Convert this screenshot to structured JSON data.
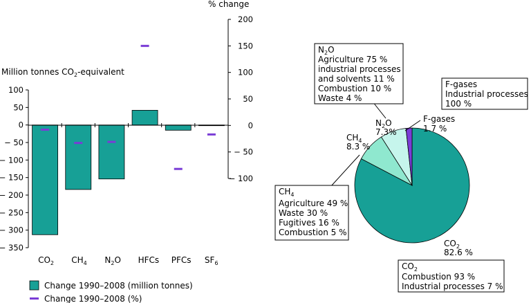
{
  "colors": {
    "tonnes": "#17a096",
    "percent": "#7a3cd6",
    "co2": "#17a096",
    "ch4": "#8fe8cf",
    "n2o": "#c6f5ec",
    "fgases": "#7a3cd6"
  },
  "chart_data": [
    {
      "type": "bar",
      "categories": [
        "CO2",
        "CH4",
        "N2O",
        "HFCs",
        "PFCs",
        "SF6"
      ],
      "category_labels": [
        {
          "main": "CO",
          "sub": "2"
        },
        {
          "main": "CH",
          "sub": "4"
        },
        {
          "main": "N",
          "sub": "2",
          "tail": "O"
        },
        {
          "main": "HFCs",
          "sub": ""
        },
        {
          "main": "PFCs",
          "sub": ""
        },
        {
          "main": "SF",
          "sub": "6"
        }
      ],
      "ylabel_left": {
        "pre": "Million tonnes CO",
        "sub": "2",
        "post": "-equivalent"
      },
      "ylabel_right": "% change",
      "ylim_left": [
        -350,
        100
      ],
      "yticks_left": [
        100,
        50,
        0,
        -50,
        -100,
        -150,
        -200,
        -250,
        -300,
        -350
      ],
      "ylim_right": [
        -100,
        200
      ],
      "yticks_right": [
        200,
        150,
        100,
        50,
        0,
        -50,
        -100
      ],
      "grid": false,
      "legend_position": "bottom-left",
      "series": [
        {
          "name": "Change 1990–2008 (million tonnes)",
          "kind": "bar",
          "axis": "left",
          "values": [
            -313,
            -184,
            -154,
            42,
            -15,
            -2
          ]
        },
        {
          "name": "Change 1990–2008 (%)",
          "kind": "marker",
          "axis": "right",
          "values": [
            -8,
            -33,
            -31,
            150,
            -82,
            -17
          ]
        }
      ]
    },
    {
      "type": "pie",
      "slices": [
        {
          "key": "co2",
          "name": "CO",
          "sub": "2",
          "value": 82.6,
          "label": "82.6 %"
        },
        {
          "key": "ch4",
          "name": "CH",
          "sub": "4",
          "value": 8.3,
          "label": "8.3 %"
        },
        {
          "key": "n2o",
          "name": "N",
          "sub": "2",
          "tail": "O",
          "value": 7.3,
          "label": "7.3%"
        },
        {
          "key": "fgases",
          "name": "F-gases",
          "sub": "",
          "value": 1.7,
          "label": "1.7 %"
        }
      ],
      "annotations": [
        {
          "key": "n2o",
          "title": {
            "main": "N",
            "sub": "2",
            "tail": "O"
          },
          "lines": [
            "Agriculture 75 %",
            "industrial processes",
            "and solvents 11 %",
            "Combustion 10 %",
            "Waste 4 %"
          ]
        },
        {
          "key": "fgases",
          "title": {
            "main": "F-gases"
          },
          "lines": [
            "Industrial processes",
            "100 %"
          ]
        },
        {
          "key": "ch4",
          "title": {
            "main": "CH",
            "sub": "4"
          },
          "lines": [
            "Agriculture 49 %",
            "Waste 30 %",
            "Fugitives 16 %",
            "Combustion 5 %"
          ]
        },
        {
          "key": "co2",
          "title": {
            "main": "CO",
            "sub": "2"
          },
          "lines": [
            "Combustion 93 %",
            "Industrial processes 7 %"
          ]
        }
      ]
    }
  ]
}
